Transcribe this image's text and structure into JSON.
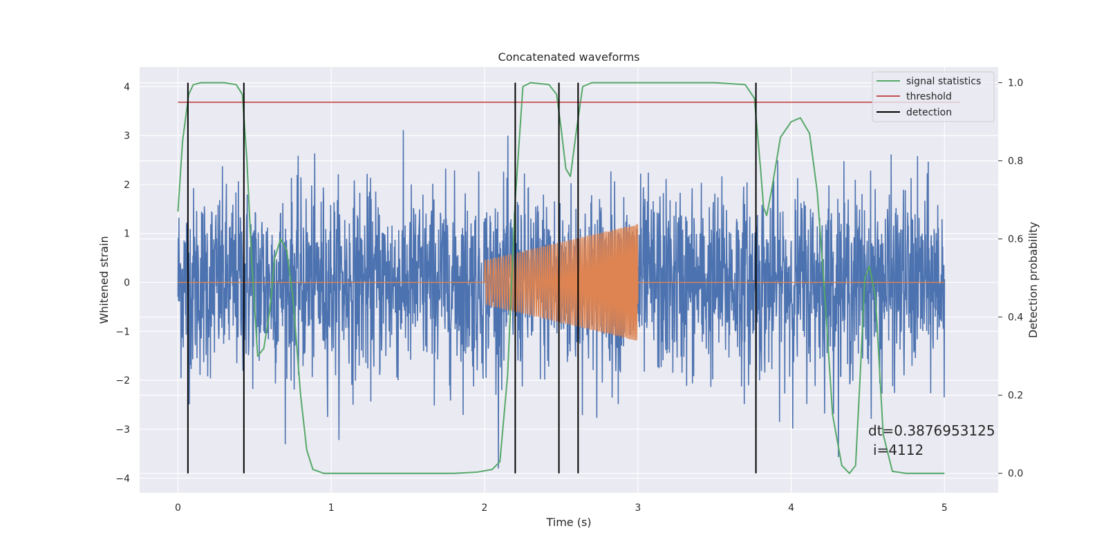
{
  "chart_data": {
    "type": "line",
    "title": "Concatenated waveforms",
    "xlabel": "Time (s)",
    "ylabel_left": "Whitened strain",
    "ylabel_right": "Detection probability",
    "xlim": [
      -0.25,
      5.35
    ],
    "ylim_left": [
      -4.3,
      4.4
    ],
    "ylim_right": [
      -0.05,
      1.04
    ],
    "x_ticks": [
      0,
      1,
      2,
      3,
      4,
      5
    ],
    "y_ticks_left": [
      -4,
      -3,
      -2,
      -1,
      0,
      1,
      2,
      3,
      4
    ],
    "y_ticks_right": [
      0.0,
      0.2,
      0.4,
      0.6,
      0.8,
      1.0
    ],
    "y_tick_labels_right": [
      "0.0",
      "0.2",
      "0.4",
      "0.6",
      "0.8",
      "1.0"
    ],
    "grid": true,
    "legend_position": "upper-right",
    "series": [
      {
        "name": "",
        "axis": "left",
        "color": "#4c72b0",
        "kind": "noise",
        "x_range": [
          0,
          5
        ]
      },
      {
        "name": "",
        "axis": "left",
        "color": "#dd8452",
        "kind": "chirp",
        "x_range": [
          2,
          3
        ],
        "amplitude_start": 0.45,
        "amplitude_end": 1.2
      },
      {
        "name": "signal statistics",
        "axis": "right",
        "color": "#55a868",
        "x": [
          0,
          0.03,
          0.07,
          0.1,
          0.15,
          0.2,
          0.3,
          0.38,
          0.42,
          0.45,
          0.48,
          0.52,
          0.56,
          0.6,
          0.63,
          0.67,
          0.71,
          0.75,
          0.8,
          0.84,
          0.88,
          0.95,
          1.2,
          1.5,
          1.8,
          1.95,
          2.05,
          2.1,
          2.15,
          2.2,
          2.25,
          2.3,
          2.42,
          2.47,
          2.5,
          2.53,
          2.56,
          2.6,
          2.64,
          2.7,
          3.0,
          3.5,
          3.7,
          3.76,
          3.8,
          3.82,
          3.84,
          3.87,
          3.93,
          4.0,
          4.06,
          4.12,
          4.17,
          4.22,
          4.27,
          4.33,
          4.38,
          4.42,
          4.45,
          4.48,
          4.51,
          4.55,
          4.6,
          4.66,
          4.75,
          5.0
        ],
        "y": [
          0.67,
          0.85,
          0.97,
          0.995,
          1.0,
          1.0,
          1.0,
          0.995,
          0.97,
          0.8,
          0.55,
          0.3,
          0.32,
          0.42,
          0.55,
          0.6,
          0.57,
          0.45,
          0.2,
          0.06,
          0.01,
          0.0,
          0.0,
          0.0,
          0.0,
          0.003,
          0.01,
          0.03,
          0.25,
          0.7,
          0.99,
          1.0,
          0.995,
          0.97,
          0.88,
          0.78,
          0.76,
          0.88,
          0.99,
          1.0,
          1.0,
          1.0,
          0.995,
          0.96,
          0.78,
          0.68,
          0.66,
          0.72,
          0.86,
          0.9,
          0.91,
          0.87,
          0.72,
          0.45,
          0.15,
          0.02,
          0.0,
          0.02,
          0.25,
          0.5,
          0.53,
          0.45,
          0.1,
          0.005,
          0.0,
          0.0
        ]
      },
      {
        "name": "threshold",
        "axis": "right",
        "color": "#c44e52",
        "x": [
          0,
          5.1
        ],
        "y": [
          0.95,
          0.95
        ]
      },
      {
        "name": "detection",
        "axis": "right",
        "color": "#000000",
        "kind": "vlines",
        "x": [
          0.065,
          0.43,
          2.2,
          2.485,
          2.61,
          3.77
        ]
      }
    ],
    "annotations": [
      "dt=0.3876953125",
      "i=4112"
    ]
  }
}
